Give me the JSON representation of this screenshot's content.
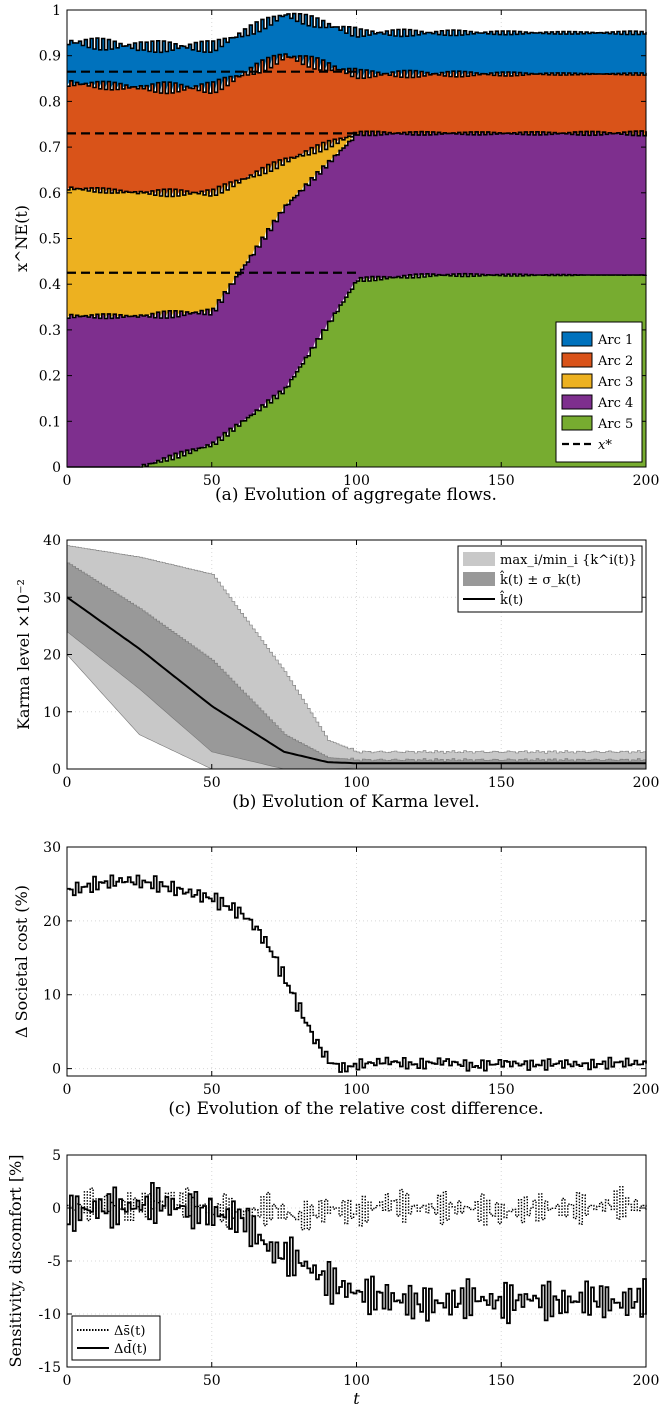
{
  "chart_data": [
    {
      "type": "area",
      "caption": "(a) Evolution of aggregate flows.",
      "ylabel": "x^NE(t)",
      "xlim": [
        0,
        200
      ],
      "ylim": [
        0,
        1
      ],
      "grid": true,
      "xticks": [
        "0",
        "50",
        "100",
        "150",
        "200"
      ],
      "yticks": [
        "0",
        "0.1",
        "0.2",
        "0.3",
        "0.4",
        "0.5",
        "0.6",
        "0.7",
        "0.8",
        "0.9",
        "1"
      ],
      "legend_position": "bottom-right",
      "series": [
        {
          "name": "Arc 1",
          "color": "#0072BD",
          "x": [
            0,
            25,
            50,
            75,
            100,
            125,
            150,
            175,
            200
          ],
          "values": [
            0.09,
            0.09,
            0.09,
            0.09,
            0.09,
            0.09,
            0.09,
            0.09,
            0.09
          ]
        },
        {
          "name": "Arc 2",
          "color": "#D95319",
          "x": [
            0,
            25,
            50,
            75,
            100,
            125,
            150,
            175,
            200
          ],
          "values": [
            0.23,
            0.23,
            0.23,
            0.23,
            0.13,
            0.13,
            0.13,
            0.13,
            0.13
          ]
        },
        {
          "name": "Arc 3",
          "color": "#EDB120",
          "x": [
            0,
            25,
            50,
            75,
            100,
            125,
            150,
            175,
            200
          ],
          "values": [
            0.28,
            0.27,
            0.26,
            0.1,
            0.0,
            0.0,
            0.0,
            0.0,
            0.0
          ]
        },
        {
          "name": "Arc 4",
          "color": "#7E2F8E",
          "x": [
            0,
            25,
            50,
            75,
            100,
            125,
            150,
            175,
            200
          ],
          "values": [
            0.33,
            0.33,
            0.29,
            0.4,
            0.32,
            0.31,
            0.31,
            0.31,
            0.31
          ]
        },
        {
          "name": "Arc 5",
          "color": "#77AC30",
          "x": [
            0,
            25,
            50,
            75,
            100,
            125,
            150,
            175,
            200
          ],
          "values": [
            0.0,
            0.0,
            0.05,
            0.17,
            0.41,
            0.42,
            0.42,
            0.42,
            0.42
          ]
        }
      ],
      "reference_lines": {
        "name": "x*",
        "values": [
          0.425,
          0.73,
          0.865
        ]
      }
    },
    {
      "type": "line",
      "caption": "(b) Evolution of Karma level.",
      "ylabel": "Karma level ×10⁻²",
      "xlim": [
        0,
        200
      ],
      "ylim": [
        0,
        40
      ],
      "grid": true,
      "xticks": [
        "0",
        "50",
        "100",
        "150",
        "200"
      ],
      "yticks": [
        "0",
        "10",
        "20",
        "30",
        "40"
      ],
      "legend_position": "top-right",
      "series": [
        {
          "name": "max_i/min_i {k^i(t)}",
          "color": "#c8c8c8",
          "x": [
            0,
            25,
            50,
            75,
            90,
            100,
            150,
            200
          ],
          "upper": [
            39,
            37,
            34,
            17,
            5,
            3,
            3,
            3
          ],
          "lower": [
            20,
            6,
            0,
            0,
            0,
            0,
            0,
            0
          ]
        },
        {
          "name": "k̂(t) ± σ_k(t)",
          "color": "#999999",
          "x": [
            0,
            25,
            50,
            75,
            90,
            100,
            150,
            200
          ],
          "upper": [
            36,
            28,
            19,
            6,
            2,
            1.6,
            1.6,
            1.6
          ],
          "lower": [
            24,
            14,
            3,
            0,
            0,
            0.2,
            0.2,
            0.2
          ]
        },
        {
          "name": "k̂(t)",
          "color": "#000000",
          "x": [
            0,
            25,
            50,
            75,
            90,
            100,
            150,
            200
          ],
          "values": [
            30,
            21,
            11,
            3,
            1.2,
            1,
            1,
            1
          ]
        }
      ]
    },
    {
      "type": "line",
      "caption": "(c) Evolution of the relative cost difference.",
      "ylabel": "Δ Societal cost (%)",
      "xlim": [
        0,
        200
      ],
      "ylim": [
        -1,
        30
      ],
      "grid": true,
      "xticks": [
        "0",
        "50",
        "100",
        "150",
        "200"
      ],
      "yticks": [
        "0",
        "10",
        "20",
        "30"
      ],
      "series": [
        {
          "name": "",
          "color": "#000000",
          "x": [
            0,
            10,
            20,
            30,
            40,
            50,
            55,
            60,
            65,
            70,
            75,
            80,
            85,
            90,
            95,
            100,
            110,
            120,
            130,
            140,
            150,
            160,
            170,
            180,
            190,
            200
          ],
          "values": [
            24,
            25,
            25.5,
            25,
            24,
            23,
            22,
            21,
            19,
            16,
            12,
            8,
            4,
            1,
            0,
            0.5,
            1,
            0.5,
            1,
            0.3,
            0.8,
            0.5,
            0.7,
            0.5,
            0.8,
            0.7
          ]
        }
      ]
    },
    {
      "type": "line",
      "caption": "",
      "ylabel": "Sensitivity, discomfort [%]",
      "xlabel": "t",
      "xlim": [
        0,
        200
      ],
      "ylim": [
        -15,
        5
      ],
      "grid": true,
      "xticks": [
        "0",
        "50",
        "100",
        "150",
        "200"
      ],
      "yticks": [
        "-15",
        "-10",
        "-5",
        "0",
        "5"
      ],
      "legend_position": "bottom-left",
      "series": [
        {
          "name": "Δs̄(t)",
          "style": "dotted",
          "color": "#000000",
          "x": [
            0,
            10,
            20,
            30,
            40,
            50,
            60,
            70,
            80,
            90,
            100,
            110,
            120,
            130,
            140,
            150,
            160,
            170,
            180,
            190,
            200
          ],
          "values": [
            0,
            0.5,
            0,
            0.5,
            0.5,
            0,
            -0.5,
            0,
            -1,
            0,
            -0.5,
            0.5,
            0,
            0,
            0,
            -0.5,
            0,
            0,
            0,
            0.5,
            0
          ]
        },
        {
          "name": "Δd̄(t)",
          "style": "solid",
          "color": "#000000",
          "x": [
            0,
            10,
            20,
            30,
            40,
            50,
            60,
            70,
            80,
            90,
            100,
            110,
            120,
            130,
            140,
            150,
            160,
            170,
            180,
            190,
            200
          ],
          "values": [
            -0.5,
            0,
            0,
            0.5,
            0,
            -0.5,
            -1,
            -4,
            -5,
            -7,
            -8,
            -8.5,
            -9,
            -9,
            -8.5,
            -9,
            -8.5,
            -9,
            -8.5,
            -9,
            -8.5
          ]
        }
      ]
    }
  ]
}
